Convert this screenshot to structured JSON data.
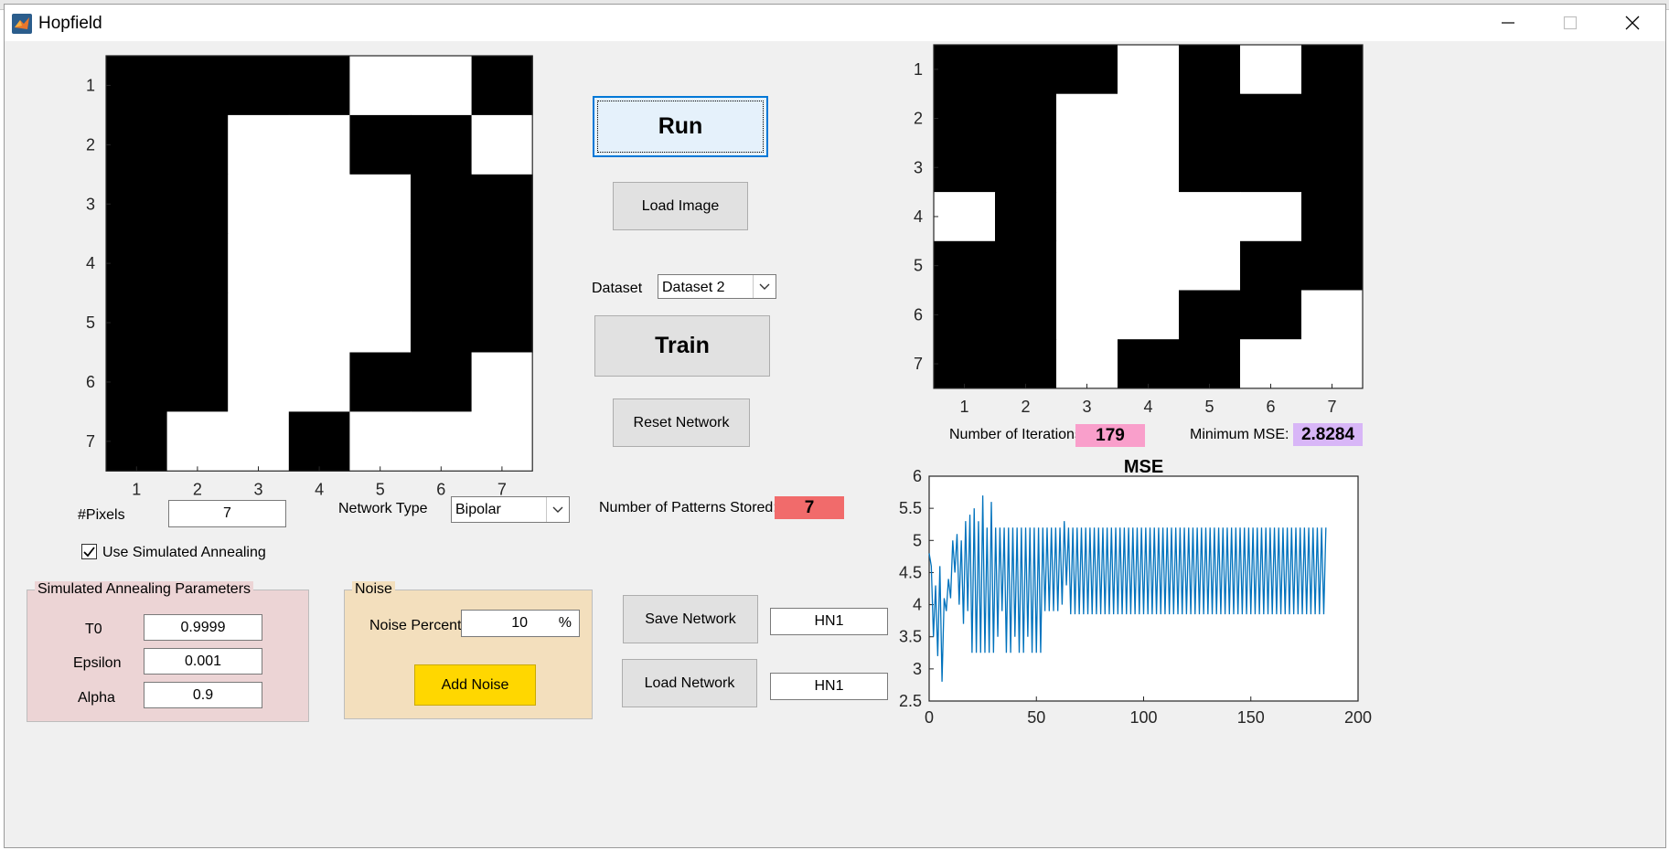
{
  "window": {
    "title": "Hopfield"
  },
  "left_grid": {
    "x_ticks": [
      "1",
      "2",
      "3",
      "4",
      "5",
      "6",
      "7"
    ],
    "y_ticks": [
      "1",
      "2",
      "3",
      "4",
      "5",
      "6",
      "7"
    ],
    "rows": [
      [
        1,
        1,
        1,
        1,
        0,
        0,
        1
      ],
      [
        1,
        1,
        0,
        0,
        1,
        1,
        0
      ],
      [
        1,
        1,
        0,
        0,
        0,
        1,
        1
      ],
      [
        1,
        1,
        0,
        0,
        0,
        1,
        1
      ],
      [
        1,
        1,
        0,
        0,
        0,
        1,
        1
      ],
      [
        1,
        1,
        0,
        0,
        1,
        1,
        0
      ],
      [
        1,
        0,
        0,
        1,
        0,
        0,
        0
      ]
    ]
  },
  "right_grid": {
    "x_ticks": [
      "1",
      "2",
      "3",
      "4",
      "5",
      "6",
      "7"
    ],
    "y_ticks": [
      "1",
      "2",
      "3",
      "4",
      "5",
      "6",
      "7"
    ],
    "rows": [
      [
        1,
        1,
        1,
        0,
        1,
        0,
        1
      ],
      [
        1,
        1,
        0,
        0,
        1,
        1,
        1
      ],
      [
        1,
        1,
        0,
        0,
        1,
        1,
        1
      ],
      [
        0,
        1,
        0,
        0,
        0,
        0,
        1
      ],
      [
        1,
        1,
        0,
        0,
        0,
        1,
        1
      ],
      [
        1,
        1,
        0,
        0,
        1,
        1,
        0
      ],
      [
        1,
        1,
        0,
        1,
        1,
        0,
        0
      ]
    ]
  },
  "controls": {
    "run_label": "Run",
    "load_image_label": "Load Image",
    "dataset_label": "Dataset",
    "dataset_value": "Dataset 2",
    "train_label": "Train",
    "reset_label": "Reset Network",
    "pixels_label": "#Pixels",
    "pixels_value": "7",
    "network_type_label": "Network Type",
    "network_type_value": "Bipolar",
    "patterns_label": "Number of Patterns Stored:",
    "patterns_value": "7",
    "use_sa_label": "Use Simulated Annealing",
    "use_sa_checked": true
  },
  "sa_panel": {
    "title": "Simulated Annealing Parameters",
    "t0_label": "T0",
    "t0_value": "0.9999",
    "epsilon_label": "Epsilon",
    "epsilon_value": "0.001",
    "alpha_label": "Alpha",
    "alpha_value": "0.9"
  },
  "noise_panel": {
    "title": "Noise",
    "percent_label": "Noise Percent",
    "percent_value": "10",
    "percent_unit": "%",
    "add_label": "Add Noise"
  },
  "network_io": {
    "save_label": "Save Network",
    "save_name": "HN1",
    "load_label": "Load Network",
    "load_name": "HN1"
  },
  "stats": {
    "iterations_label": "Number of Iterations:",
    "iterations_value": "179",
    "min_mse_label": "Minimum MSE:",
    "min_mse_value": "2.8284"
  },
  "colors": {
    "patterns_badge": "#f16b6b",
    "iterations_badge": "#f99fcb",
    "mse_badge": "#d8b6f7",
    "sa_panel_bg": "#ecd4d5",
    "noise_panel_bg": "#f3dfbd",
    "add_noise_btn": "#ffd700",
    "mse_line": "#0072bd"
  },
  "chart_data": {
    "type": "line",
    "title": "MSE",
    "xlabel": "",
    "ylabel": "",
    "xlim": [
      0,
      200
    ],
    "ylim": [
      2.5,
      6
    ],
    "x_ticks": [
      "0",
      "50",
      "100",
      "150",
      "200"
    ],
    "y_ticks": [
      "2.5",
      "3",
      "3.5",
      "4",
      "4.5",
      "5",
      "5.5",
      "6"
    ],
    "series": [
      {
        "values": [
          4.8,
          4.6,
          3.5,
          4.3,
          3.2,
          4.6,
          2.8,
          4.1,
          3.9,
          4.4,
          4.1,
          5.0,
          4.5,
          5.1,
          4.0,
          5.0,
          3.7,
          5.3,
          3.9,
          5.4,
          3.25,
          5.5,
          3.25,
          5.3,
          3.25,
          5.7,
          3.25,
          5.2,
          3.25,
          5.6,
          3.25,
          5.2,
          3.5,
          5.2,
          3.9,
          5.2,
          3.25,
          5.2,
          3.25,
          5.2,
          3.5,
          5.2,
          3.25,
          5.2,
          3.25,
          5.2,
          3.5,
          5.2,
          3.25,
          5.2,
          3.25,
          5.2,
          3.25,
          5.2,
          3.9,
          5.2,
          3.9,
          5.2,
          3.9,
          5.2,
          3.9,
          5.2,
          4.0,
          5.3,
          4.3,
          5.2,
          3.85,
          5.2,
          3.85,
          5.2,
          3.85,
          5.2,
          3.85,
          5.2,
          3.85,
          5.2,
          3.85,
          5.2,
          3.85,
          5.2,
          3.85,
          5.2,
          3.85,
          5.2,
          3.85,
          5.2,
          3.85,
          5.2,
          3.85,
          5.2,
          3.85,
          5.2,
          3.85,
          5.2,
          3.85,
          5.2,
          3.85,
          5.2,
          3.85,
          5.2,
          3.85,
          5.2,
          3.85,
          5.2,
          3.85,
          5.2,
          3.85,
          5.2,
          3.85,
          5.2,
          3.85,
          5.2,
          3.85,
          5.2,
          3.85,
          5.2,
          3.85,
          5.2,
          3.85,
          5.2,
          3.85,
          5.2,
          3.85,
          5.2,
          3.85,
          5.2,
          3.85,
          5.2,
          3.85,
          5.2,
          3.85,
          5.2,
          3.85,
          5.2,
          3.85,
          5.2,
          3.85,
          5.2,
          3.85,
          5.2,
          3.85,
          5.2,
          3.85,
          5.2,
          3.85,
          5.2,
          3.85,
          5.2,
          3.85,
          5.2,
          3.85,
          5.2,
          3.85,
          5.2,
          3.85,
          5.2,
          3.85,
          5.2,
          3.85,
          5.2,
          3.85,
          5.2,
          3.85,
          5.2,
          3.85,
          5.2,
          3.85,
          5.2,
          3.85,
          5.2,
          3.85,
          5.2,
          3.85,
          5.2,
          3.85,
          5.2,
          3.85,
          5.2,
          3.85,
          5.2,
          3.85,
          5.2,
          3.85,
          5.2,
          3.85,
          5.2
        ]
      }
    ]
  }
}
